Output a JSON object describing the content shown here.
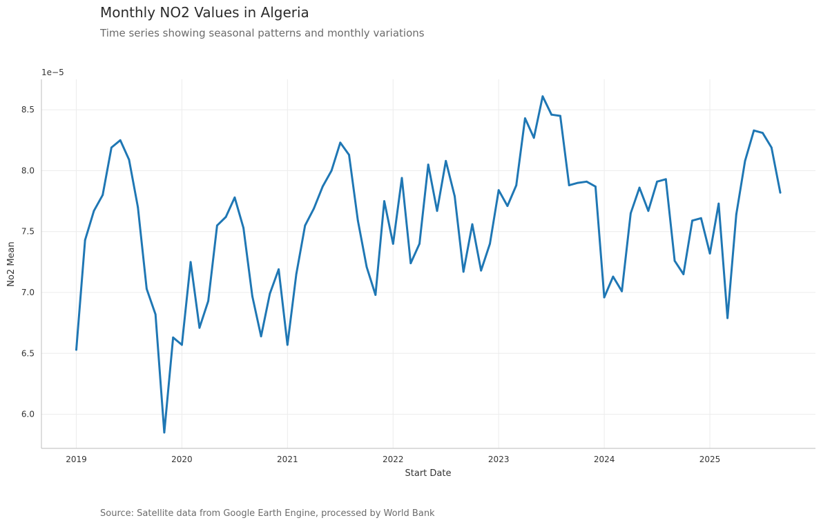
{
  "header": {
    "title": "Monthly NO2 Values in Algeria",
    "subtitle": "Time series showing seasonal patterns and monthly variations"
  },
  "footer": {
    "source": "Source: Satellite data from Google Earth Engine, processed by World Bank"
  },
  "chart_data": {
    "type": "line",
    "xlabel": "Start Date",
    "ylabel": "No2 Mean",
    "y_scale_label": "1e−5",
    "xlim": [
      2018.67,
      2026.0
    ],
    "ylim": [
      5.72,
      8.75
    ],
    "x_ticks": [
      {
        "value": 2019,
        "label": "2019"
      },
      {
        "value": 2020,
        "label": "2020"
      },
      {
        "value": 2021,
        "label": "2021"
      },
      {
        "value": 2022,
        "label": "2022"
      },
      {
        "value": 2023,
        "label": "2023"
      },
      {
        "value": 2024,
        "label": "2024"
      },
      {
        "value": 2025,
        "label": "2025"
      }
    ],
    "y_ticks": [
      {
        "value": 6.0,
        "label": "6.0"
      },
      {
        "value": 6.5,
        "label": "6.5"
      },
      {
        "value": 7.0,
        "label": "7.0"
      },
      {
        "value": 7.5,
        "label": "7.5"
      },
      {
        "value": 8.0,
        "label": "8.0"
      },
      {
        "value": 8.5,
        "label": "8.5"
      }
    ],
    "grid": true,
    "series": [
      {
        "name": "No2 Mean",
        "color": "#1f77b4",
        "start": "2019-01",
        "values": [
          6.53,
          7.43,
          7.67,
          7.8,
          8.19,
          8.25,
          8.09,
          7.7,
          7.03,
          6.82,
          5.85,
          6.63,
          6.57,
          7.25,
          6.71,
          6.93,
          7.55,
          7.62,
          7.78,
          7.53,
          6.97,
          6.64,
          6.99,
          7.19,
          6.57,
          7.15,
          7.55,
          7.69,
          7.87,
          8.0,
          8.23,
          8.13,
          7.59,
          7.21,
          6.98,
          7.75,
          7.4,
          7.94,
          7.24,
          7.4,
          8.05,
          7.67,
          8.08,
          7.79,
          7.17,
          7.56,
          7.18,
          7.4,
          7.84,
          7.71,
          7.88,
          8.43,
          8.27,
          8.61,
          8.46,
          8.45,
          7.88,
          7.9,
          7.91,
          7.87,
          6.96,
          7.13,
          7.01,
          7.65,
          7.86,
          7.67,
          7.91,
          7.93,
          7.26,
          7.15,
          7.59,
          7.61,
          7.32,
          7.73,
          6.79,
          7.64,
          8.08,
          8.33,
          8.31,
          8.19,
          7.82
        ]
      }
    ]
  }
}
